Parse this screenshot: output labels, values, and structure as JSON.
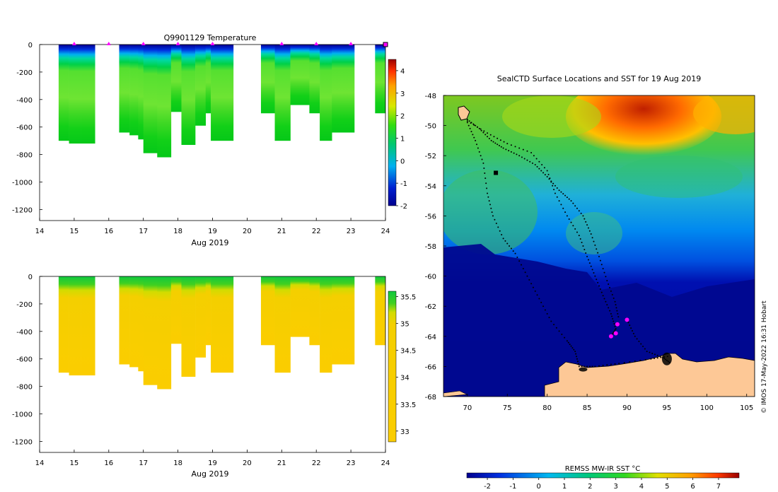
{
  "chart_data": [
    {
      "type": "heatmap",
      "title": "Q9901129  Temperature",
      "xlabel": "Aug 2019",
      "ylabel": "",
      "xlim": [
        14,
        24
      ],
      "ylim": [
        -1280,
        0
      ],
      "x_ticks": [
        14,
        15,
        16,
        17,
        18,
        19,
        20,
        21,
        22,
        23,
        24
      ],
      "y_ticks": [
        0,
        -200,
        -400,
        -600,
        -800,
        -1000,
        -1200
      ],
      "colorbar": {
        "min": -2,
        "max": 4.5,
        "ticks": [
          4,
          3,
          2,
          1,
          0,
          -1,
          -2
        ]
      },
      "profile_markers_day": [
        15.0,
        16.0,
        17.0,
        18.0,
        19.0,
        21.0,
        22.0,
        23.0,
        24.0
      ],
      "profiles": [
        {
          "x0": 14.55,
          "x1": 14.85,
          "depth": 700
        },
        {
          "x0": 14.85,
          "x1": 15.2,
          "depth": 720
        },
        {
          "x0": 15.2,
          "x1": 15.6,
          "depth": 720
        },
        {
          "x0": 16.3,
          "x1": 16.6,
          "depth": 640
        },
        {
          "x0": 16.6,
          "x1": 16.85,
          "depth": 660
        },
        {
          "x0": 16.85,
          "x1": 17.0,
          "depth": 690
        },
        {
          "x0": 17.0,
          "x1": 17.4,
          "depth": 790
        },
        {
          "x0": 17.4,
          "x1": 17.8,
          "depth": 820
        },
        {
          "x0": 17.8,
          "x1": 18.1,
          "depth": 490
        },
        {
          "x0": 18.1,
          "x1": 18.5,
          "depth": 730
        },
        {
          "x0": 18.5,
          "x1": 18.8,
          "depth": 590
        },
        {
          "x0": 18.8,
          "x1": 18.95,
          "depth": 500
        },
        {
          "x0": 18.95,
          "x1": 19.6,
          "depth": 700
        },
        {
          "x0": 20.4,
          "x1": 20.8,
          "depth": 500
        },
        {
          "x0": 20.8,
          "x1": 21.25,
          "depth": 700
        },
        {
          "x0": 21.25,
          "x1": 21.8,
          "depth": 440
        },
        {
          "x0": 21.8,
          "x1": 22.1,
          "depth": 500
        },
        {
          "x0": 22.1,
          "x1": 22.45,
          "depth": 700
        },
        {
          "x0": 22.45,
          "x1": 23.1,
          "depth": 640
        },
        {
          "x0": 23.7,
          "x1": 24.0,
          "depth": 500
        }
      ]
    },
    {
      "type": "heatmap",
      "title": "",
      "xlabel": "Aug 2019",
      "ylabel": "",
      "xlim": [
        14,
        24
      ],
      "ylim": [
        -1280,
        0
      ],
      "x_ticks": [
        14,
        15,
        16,
        17,
        18,
        19,
        20,
        21,
        22,
        23,
        24
      ],
      "y_ticks": [
        0,
        -200,
        -400,
        -600,
        -800,
        -1000,
        -1200
      ],
      "colorbar": {
        "min": 32.8,
        "max": 35.6,
        "ticks": [
          35.5,
          35,
          34.5,
          34,
          33.5,
          33
        ]
      },
      "profiles": "same columns as temperature section"
    },
    {
      "type": "heatmap",
      "title": "SealCTD Surface Locations and SST for 19 Aug 2019",
      "xlabel": "",
      "ylabel": "",
      "xlim": [
        67,
        106
      ],
      "ylim": [
        -68,
        -48
      ],
      "x_ticks": [
        70,
        75,
        80,
        85,
        90,
        95,
        100,
        105
      ],
      "y_ticks": [
        -48,
        -50,
        -52,
        -54,
        -56,
        -58,
        -60,
        -62,
        -64,
        -66,
        -68
      ],
      "colorbar": {
        "label": "REMSS MW-IR SST °C",
        "min": -2.8,
        "max": 7.8,
        "ticks": [
          -2,
          -1,
          0,
          1,
          2,
          3,
          4,
          5,
          6,
          7
        ]
      },
      "highlight_points": [
        [
          88.0,
          -64.0
        ],
        [
          88.6,
          -63.8
        ],
        [
          90.0,
          -62.9
        ],
        [
          88.8,
          -63.2
        ]
      ]
    }
  ],
  "side_label": "© IMOS 17-May-2022 16:31 Hobart",
  "colors": {
    "marker": "#ff00ff",
    "land": "#fdc896",
    "ice": "#000080"
  }
}
